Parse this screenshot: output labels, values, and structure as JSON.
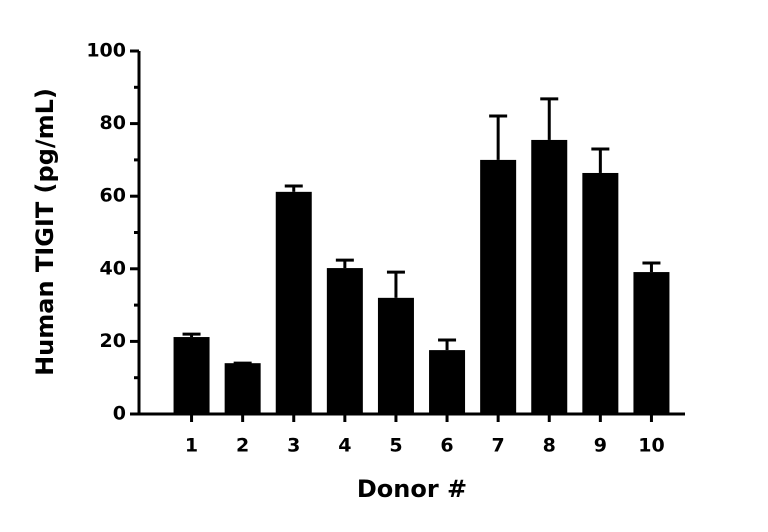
{
  "chart_data": {
    "type": "bar",
    "ylabel": "Human TIGIT (pg/mL)",
    "xlabel": "Donor #",
    "categories": [
      "1",
      "2",
      "3",
      "4",
      "5",
      "6",
      "7",
      "8",
      "9",
      "10"
    ],
    "values": [
      21.2,
      14.0,
      61.2,
      40.2,
      32.0,
      17.6,
      70.0,
      75.5,
      66.4,
      39.1
    ],
    "errors": [
      0.8,
      0,
      1.6,
      2.2,
      7.1,
      2.8,
      12.1,
      11.3,
      6.6,
      2.5
    ],
    "color": "#000000",
    "ylim": [
      0,
      100
    ],
    "yticks": [
      0,
      20,
      40,
      60,
      80,
      100
    ],
    "minor_yticks": [
      10,
      30,
      50,
      70,
      90
    ],
    "grid": false
  }
}
